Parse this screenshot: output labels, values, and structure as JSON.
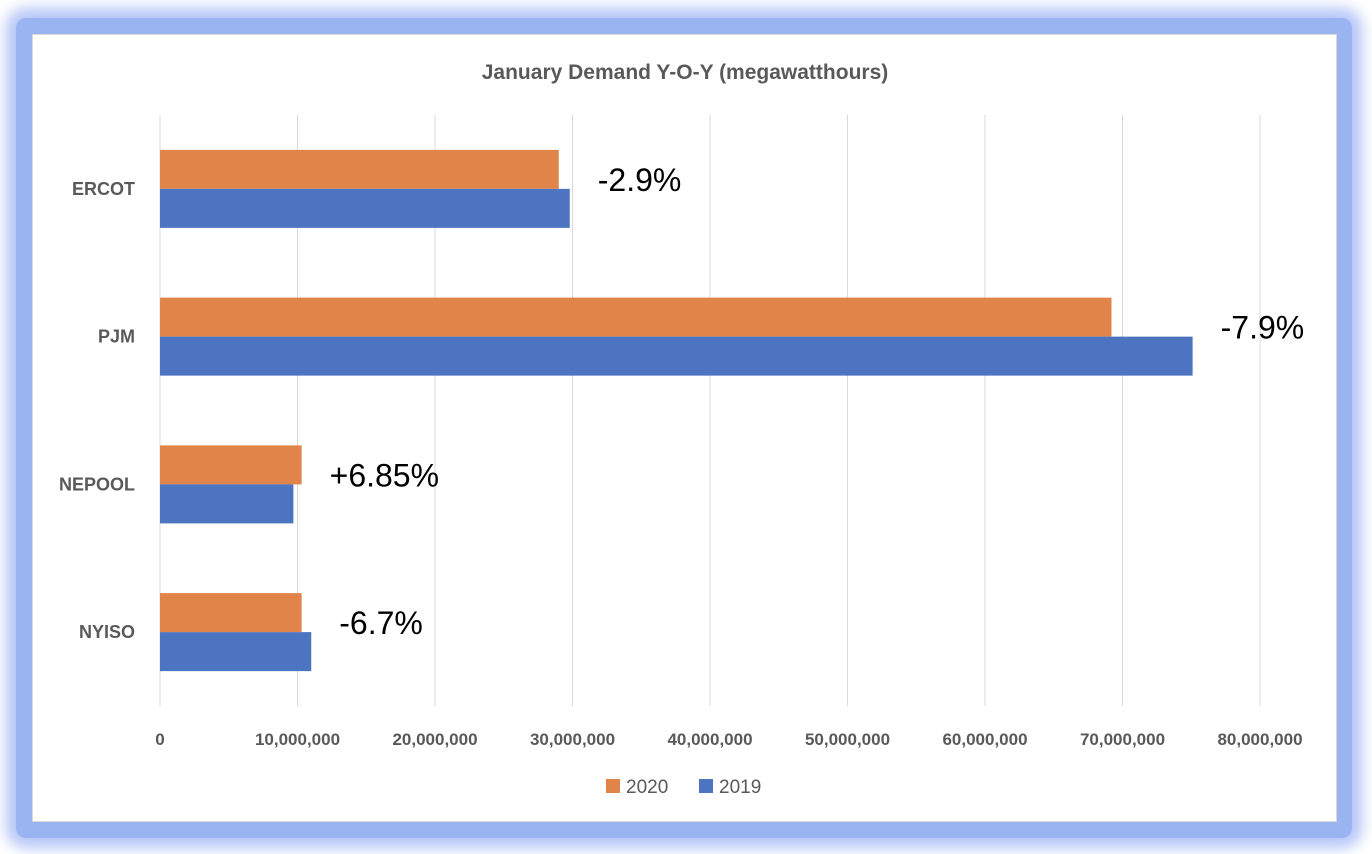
{
  "chart_data": {
    "type": "bar",
    "orientation": "horizontal",
    "title": "January Demand Y-O-Y (megawatthours)",
    "xlabel": "",
    "ylabel": "",
    "categories": [
      "ERCOT",
      "PJM",
      "NEPOOL",
      "NYISO"
    ],
    "series": [
      {
        "name": "2020",
        "color": "#e0844a",
        "values": [
          29000000,
          69200000,
          10300000,
          10300000
        ]
      },
      {
        "name": "2019",
        "color": "#4d74c0",
        "values": [
          29800000,
          75100000,
          9700000,
          11000000
        ]
      }
    ],
    "xlim": [
      0,
      80000000
    ],
    "ticks": [
      "0",
      "10,000,000",
      "20,000,000",
      "30,000,000",
      "40,000,000",
      "50,000,000",
      "60,000,000",
      "70,000,000",
      "80,000,000"
    ],
    "tick_values": [
      0,
      10000000,
      20000000,
      30000000,
      40000000,
      50000000,
      60000000,
      70000000,
      80000000
    ],
    "grid": true,
    "legend": "bottom",
    "annotations": [
      "-2.9%",
      "-7.9%",
      "+6.85%",
      "-6.7%"
    ]
  }
}
